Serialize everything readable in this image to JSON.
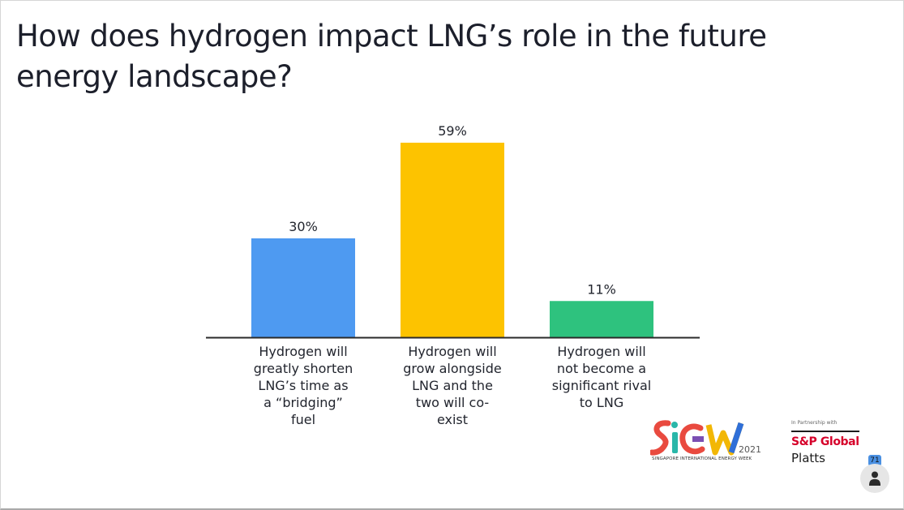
{
  "chart_data": {
    "type": "bar",
    "title": "How does hydrogen impact LNG’s role in the future energy landscape?",
    "categories": [
      "Hydrogen will greatly shorten LNG’s time as a “bridging” fuel",
      "Hydrogen will grow alongside LNG and the two will co-exist",
      "Hydrogen will not become a significant rival to LNG"
    ],
    "category_lines": [
      [
        "Hydrogen will",
        "greatly shorten",
        "LNG’s time as",
        "a “bridging”",
        "fuel"
      ],
      [
        "Hydrogen will",
        "grow alongside",
        "LNG and the",
        "two will co-",
        "exist"
      ],
      [
        "Hydrogen will",
        "not become a",
        "significant rival",
        "to LNG"
      ]
    ],
    "values": [
      30,
      59,
      11
    ],
    "value_labels": [
      "30%",
      "59%",
      "11%"
    ],
    "colors": [
      "#4e9af1",
      "#fdc300",
      "#2ec27e"
    ],
    "ylim": [
      0,
      59
    ],
    "xlabel": "",
    "ylabel": "",
    "grid": false
  },
  "branding": {
    "siew_logo": "SiEW",
    "siew_year": "2021",
    "siew_subtitle": "SINGAPORE INTERNATIONAL ENERGY WEEK",
    "partner_text": "In Partnership with",
    "sp_global": "S&P Global",
    "platts": "Platts"
  },
  "participants": {
    "count": "71",
    "icon": "user-icon"
  }
}
